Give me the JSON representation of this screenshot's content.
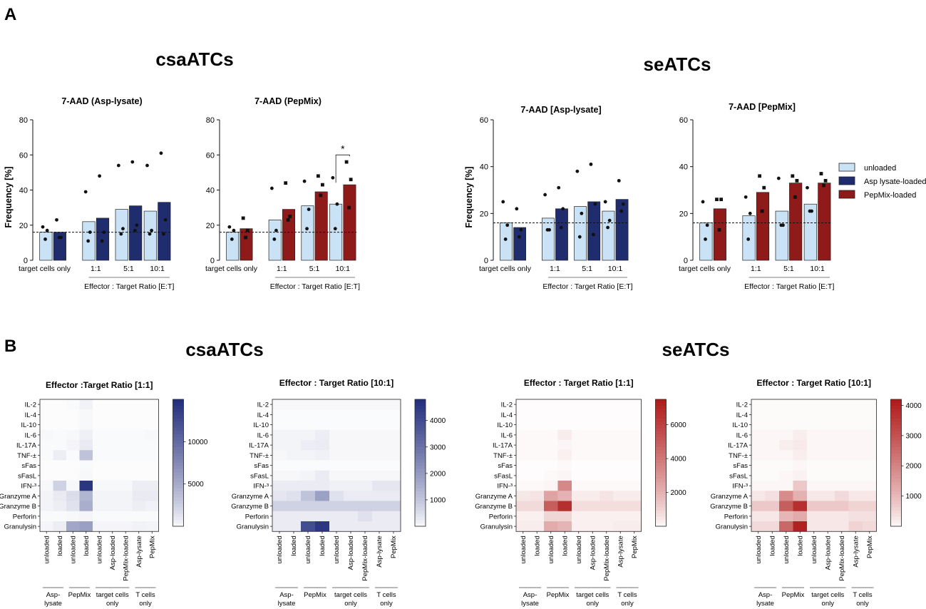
{
  "panels": {
    "a": "A",
    "b": "B"
  },
  "group_titles": {
    "csa": "csaATCs",
    "se": "seATCs"
  },
  "legend": [
    {
      "label": "unloaded",
      "color": "#c9e2f5"
    },
    {
      "label": "Asp lysate-loaded",
      "color": "#1f2d6e"
    },
    {
      "label": "PepMix-loaded",
      "color": "#8e1a1a"
    }
  ],
  "colors": {
    "unloaded": "#c9e2f5",
    "asp": "#1f2d6e",
    "pep": "#8e1a1a",
    "blue_max": "#24307e",
    "red_max": "#b01c1c"
  },
  "chart_data": [
    {
      "id": "csa-asp",
      "type": "bar",
      "title": "7-AAD (Asp-lysate)",
      "ylabel": "Frequency [%]",
      "ylim": [
        0,
        80
      ],
      "yticks": [
        0,
        20,
        40,
        60,
        80
      ],
      "categories": [
        "target cells only",
        "1:1",
        "5:1",
        "10:1"
      ],
      "xlabel": "Effector : Target Ratio [E:T]",
      "baseline": 16,
      "loaded_color": "asp",
      "series": [
        {
          "name": "unloaded",
          "values": [
            16,
            22,
            29,
            28
          ],
          "points": [
            [
              19,
              17,
              12
            ],
            [
              39,
              16,
              11
            ],
            [
              54,
              18,
              15
            ],
            [
              54,
              17,
              15
            ]
          ]
        },
        {
          "name": "Asp lysate-loaded",
          "values": [
            16,
            24,
            31,
            33
          ],
          "points": [
            [
              23,
              13,
              13
            ],
            [
              48,
              16,
              11
            ],
            [
              56,
              20,
              17
            ],
            [
              61,
              23,
              15
            ]
          ]
        }
      ]
    },
    {
      "id": "csa-pep",
      "type": "bar",
      "title": "7-AAD (PepMix)",
      "ylabel": "",
      "ylim": [
        0,
        80
      ],
      "yticks": [
        0,
        20,
        40,
        60,
        80
      ],
      "categories": [
        "target cells only",
        "1:1",
        "5:1",
        "10:1"
      ],
      "xlabel": "Effector : Target Ratio [E:T]",
      "baseline": 16,
      "loaded_color": "pep",
      "significance": {
        "label": "*",
        "category_index": 3
      },
      "series": [
        {
          "name": "unloaded",
          "values": [
            16,
            23,
            31,
            32
          ],
          "points": [
            [
              19,
              17,
              12
            ],
            [
              41,
              17,
              12
            ],
            [
              45,
              29,
              18
            ],
            [
              47,
              32,
              18
            ]
          ]
        },
        {
          "name": "PepMix-loaded",
          "values": [
            18,
            29,
            39,
            43
          ],
          "points": [
            [
              24,
              17,
              13
            ],
            [
              44,
              25,
              23
            ],
            [
              48,
              43,
              37
            ],
            [
              56,
              46,
              30
            ]
          ]
        }
      ]
    },
    {
      "id": "se-asp",
      "type": "bar",
      "title": "7-AAD [Asp-lysate]",
      "ylabel": "Frequency [%]",
      "ylim": [
        0,
        60
      ],
      "yticks": [
        0,
        20,
        40,
        60
      ],
      "categories": [
        "target cells only",
        "1:1",
        "5:1",
        "10:1"
      ],
      "xlabel": "Effector : Target Ratio [E:T]",
      "baseline": 16,
      "loaded_color": "asp",
      "series": [
        {
          "name": "unloaded",
          "values": [
            16,
            18,
            23,
            21
          ],
          "points": [
            [
              25,
              15,
              9
            ],
            [
              28,
              13,
              13
            ],
            [
              38,
              20,
              10
            ],
            [
              25,
              17,
              14
            ]
          ]
        },
        {
          "name": "Asp lysate-loaded",
          "values": [
            14,
            22,
            25,
            26
          ],
          "points": [
            [
              22,
              13,
              10
            ],
            [
              31,
              22,
              14
            ],
            [
              41,
              24,
              11
            ],
            [
              34,
              24,
              21
            ]
          ]
        }
      ]
    },
    {
      "id": "se-pep",
      "type": "bar",
      "title": "7-AAD [PepMix]",
      "ylabel": "",
      "ylim": [
        0,
        60
      ],
      "yticks": [
        0,
        20,
        40,
        60
      ],
      "categories": [
        "target cells only",
        "1:1",
        "5:1",
        "10:1"
      ],
      "xlabel": "Effector : Target Ratio [E:T]",
      "baseline": 16,
      "loaded_color": "pep",
      "series": [
        {
          "name": "unloaded",
          "values": [
            16,
            19,
            21,
            24
          ],
          "points": [
            [
              25,
              15,
              9
            ],
            [
              27,
              20,
              9
            ],
            [
              35,
              15,
              15
            ],
            [
              31,
              21,
              21
            ]
          ]
        },
        {
          "name": "PepMix-loaded",
          "values": [
            22,
            29,
            33,
            33
          ],
          "points": [
            [
              26,
              26,
              13
            ],
            [
              36,
              31,
              21
            ],
            [
              36,
              34,
              27
            ],
            [
              37,
              34,
              32
            ]
          ]
        }
      ]
    },
    {
      "id": "hm-csa-1",
      "type": "heatmap",
      "title": "Effector :Target Ratio [1:1]",
      "palette": "blue",
      "rows": [
        "IL-2",
        "IL-4",
        "IL-10",
        "IL-6",
        "IL-17A",
        "TNF-±",
        "sFas",
        "sFasL",
        "IFN-³",
        "Granzyme A",
        "Granzyme B",
        "Perforin",
        "Granulysin"
      ],
      "columns": [
        "unloaded",
        "loaded",
        "unloaded",
        "loaded",
        "unloaded",
        "Asp-loaded",
        "PepMix-loaded",
        "Asp-lysate",
        "PepMix"
      ],
      "col_groups": [
        {
          "label": "Asp-\nlysate",
          "span": 2
        },
        {
          "label": "PepMix",
          "span": 2
        },
        {
          "label": "target cells\nonly",
          "span": 3
        },
        {
          "label": "T cells\nonly",
          "span": 2
        }
      ],
      "colorbar": {
        "min": 0,
        "max": 15000,
        "ticks": [
          5000,
          10000
        ]
      },
      "values": [
        [
          100,
          100,
          200,
          600,
          100,
          100,
          100,
          100,
          100
        ],
        [
          100,
          100,
          100,
          300,
          100,
          100,
          100,
          100,
          100
        ],
        [
          100,
          100,
          100,
          300,
          100,
          100,
          100,
          100,
          100
        ],
        [
          300,
          200,
          300,
          700,
          200,
          200,
          200,
          200,
          300
        ],
        [
          200,
          200,
          400,
          1000,
          200,
          200,
          200,
          200,
          200
        ],
        [
          200,
          800,
          200,
          3500,
          200,
          200,
          200,
          200,
          200
        ],
        [
          100,
          100,
          100,
          200,
          100,
          100,
          100,
          100,
          100
        ],
        [
          100,
          100,
          100,
          300,
          100,
          100,
          100,
          100,
          100
        ],
        [
          300,
          2500,
          300,
          14500,
          300,
          300,
          300,
          800,
          800
        ],
        [
          500,
          1000,
          1800,
          4500,
          500,
          500,
          500,
          1000,
          1000
        ],
        [
          500,
          800,
          1500,
          5000,
          500,
          500,
          500,
          800,
          600
        ],
        [
          200,
          200,
          300,
          400,
          200,
          200,
          200,
          200,
          200
        ],
        [
          400,
          800,
          5500,
          6000,
          400,
          400,
          400,
          600,
          500
        ]
      ]
    },
    {
      "id": "hm-csa-10",
      "type": "heatmap",
      "title": "Effector : Target Ratio [10:1]",
      "palette": "blue",
      "rows": [
        "IL-2",
        "IL-4",
        "IL-10",
        "IL-6",
        "IL-17A",
        "TNF-±",
        "sFas",
        "sFasL",
        "IFN-³",
        "Granzyme A",
        "Granzyme B",
        "Perforin",
        "Granulysin"
      ],
      "columns": [
        "unloaded",
        "loaded",
        "unloaded",
        "loaded",
        "unloaded",
        "Asp-loaded",
        "PepMix-loaded",
        "Asp-lysate",
        "PepMix"
      ],
      "col_groups": [
        {
          "label": "Asp-\nlysate",
          "span": 2
        },
        {
          "label": "PepMix",
          "span": 2
        },
        {
          "label": "target cells\nonly",
          "span": 3
        },
        {
          "label": "T cells\nonly",
          "span": 2
        }
      ],
      "colorbar": {
        "min": 0,
        "max": 4800,
        "ticks": [
          1000,
          2000,
          3000,
          4000
        ]
      },
      "values": [
        [
          100,
          100,
          100,
          100,
          100,
          100,
          100,
          100,
          100
        ],
        [
          50,
          50,
          50,
          50,
          50,
          50,
          50,
          50,
          50
        ],
        [
          50,
          50,
          50,
          50,
          50,
          50,
          50,
          50,
          50
        ],
        [
          150,
          150,
          150,
          250,
          100,
          100,
          100,
          100,
          100
        ],
        [
          150,
          150,
          250,
          300,
          100,
          100,
          100,
          100,
          100
        ],
        [
          100,
          150,
          150,
          200,
          100,
          100,
          100,
          100,
          100
        ],
        [
          50,
          50,
          50,
          50,
          50,
          50,
          50,
          50,
          50
        ],
        [
          100,
          100,
          150,
          300,
          100,
          100,
          100,
          100,
          100
        ],
        [
          300,
          300,
          300,
          300,
          200,
          200,
          200,
          400,
          400
        ],
        [
          400,
          500,
          1100,
          1900,
          500,
          300,
          300,
          300,
          300
        ],
        [
          800,
          800,
          800,
          800,
          800,
          800,
          800,
          800,
          800
        ],
        [
          300,
          300,
          300,
          300,
          300,
          300,
          500,
          300,
          300
        ],
        [
          300,
          300,
          4000,
          4600,
          300,
          300,
          300,
          300,
          300
        ]
      ]
    },
    {
      "id": "hm-se-1",
      "type": "heatmap",
      "title": "Effector : Target Ratio [1:1]",
      "palette": "red",
      "rows": [
        "IL-2",
        "IL-4",
        "IL-10",
        "IL-6",
        "IL-17A",
        "TNF-±",
        "sFas",
        "sFasL",
        "IFN-³",
        "Granzyme A",
        "Granzyme B",
        "Perforin",
        "Granulysin"
      ],
      "columns": [
        "unloaded",
        "loaded",
        "unloaded",
        "loaded",
        "unloaded",
        "Asp-loaded",
        "PepMix-loaded",
        "Asp-lysate",
        "PepMix"
      ],
      "col_groups": [
        {
          "label": "Asp-\nlysate",
          "span": 2
        },
        {
          "label": "PepMix",
          "span": 2
        },
        {
          "label": "target cells\nonly",
          "span": 3
        },
        {
          "label": "T cells\nonly",
          "span": 2
        }
      ],
      "colorbar": {
        "min": 0,
        "max": 7500,
        "ticks": [
          2000,
          4000,
          6000
        ]
      },
      "values": [
        [
          50,
          50,
          50,
          50,
          50,
          50,
          50,
          50,
          50
        ],
        [
          50,
          50,
          50,
          50,
          50,
          50,
          50,
          50,
          50
        ],
        [
          50,
          50,
          50,
          50,
          50,
          50,
          50,
          50,
          50
        ],
        [
          100,
          100,
          100,
          400,
          100,
          100,
          100,
          100,
          100
        ],
        [
          100,
          100,
          100,
          200,
          100,
          100,
          100,
          100,
          100
        ],
        [
          100,
          100,
          100,
          300,
          100,
          100,
          100,
          100,
          100
        ],
        [
          50,
          50,
          50,
          100,
          50,
          50,
          50,
          50,
          50
        ],
        [
          50,
          50,
          100,
          200,
          50,
          50,
          50,
          50,
          50
        ],
        [
          100,
          100,
          200,
          3500,
          100,
          100,
          100,
          100,
          100
        ],
        [
          500,
          600,
          2600,
          2100,
          400,
          400,
          600,
          400,
          400
        ],
        [
          900,
          900,
          5000,
          6800,
          800,
          800,
          800,
          800,
          800
        ],
        [
          300,
          300,
          1000,
          1000,
          300,
          300,
          300,
          300,
          300
        ],
        [
          400,
          400,
          2300,
          2000,
          300,
          300,
          300,
          400,
          400
        ]
      ]
    },
    {
      "id": "hm-se-10",
      "type": "heatmap",
      "title": "Effector : Target Ratio [10:1]",
      "palette": "red",
      "rows": [
        "IL-2",
        "IL-4",
        "IL-10",
        "IL-6",
        "IL-17A",
        "TNF-±",
        "sFas",
        "sFasL",
        "IFN-³",
        "Granzyme A",
        "Granzyme B",
        "Perforin",
        "Granulysin"
      ],
      "columns": [
        "unloaded",
        "loaded",
        "unloaded",
        "loaded",
        "unloaded",
        "Asp-loaded",
        "PepMix-loaded",
        "Asp-lysate",
        "PepMix"
      ],
      "col_groups": [
        {
          "label": "Asp-\nlysate",
          "span": 2
        },
        {
          "label": "PepMix",
          "span": 2
        },
        {
          "label": "target cells\nonly",
          "span": 3
        },
        {
          "label": "T cells\nonly",
          "span": 2
        }
      ],
      "colorbar": {
        "min": 0,
        "max": 4200,
        "ticks": [
          1000,
          2000,
          3000,
          4000
        ]
      },
      "values": [
        [
          50,
          50,
          50,
          50,
          50,
          50,
          50,
          50,
          50
        ],
        [
          50,
          50,
          50,
          50,
          50,
          50,
          50,
          50,
          50
        ],
        [
          50,
          50,
          50,
          50,
          50,
          50,
          50,
          50,
          50
        ],
        [
          100,
          100,
          100,
          200,
          100,
          100,
          100,
          100,
          100
        ],
        [
          100,
          100,
          200,
          250,
          100,
          100,
          100,
          100,
          100
        ],
        [
          100,
          100,
          100,
          200,
          100,
          100,
          100,
          100,
          100
        ],
        [
          50,
          50,
          50,
          100,
          50,
          50,
          50,
          50,
          50
        ],
        [
          50,
          50,
          100,
          150,
          50,
          50,
          50,
          50,
          50
        ],
        [
          100,
          100,
          100,
          800,
          100,
          100,
          100,
          100,
          100
        ],
        [
          300,
          400,
          1900,
          1200,
          300,
          300,
          500,
          300,
          300
        ],
        [
          800,
          800,
          2800,
          3800,
          800,
          800,
          800,
          600,
          600
        ],
        [
          300,
          300,
          1100,
          1300,
          300,
          300,
          300,
          400,
          400
        ],
        [
          500,
          500,
          2600,
          4100,
          300,
          300,
          300,
          600,
          500
        ]
      ]
    }
  ]
}
